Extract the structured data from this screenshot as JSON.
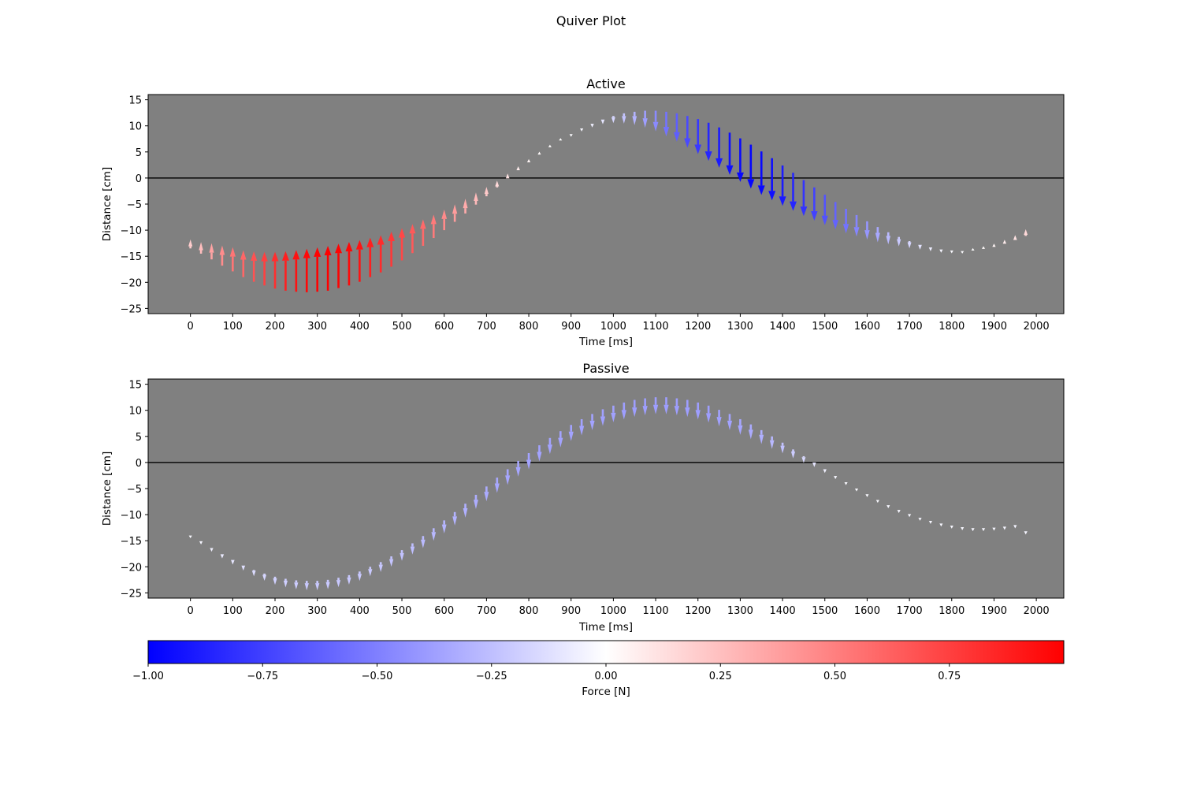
{
  "figure": {
    "title": "Quiver Plot",
    "colorbar": {
      "label": "Force [N]",
      "range": [
        -1.0,
        1.0
      ],
      "colors": {
        "min": "#0000ff",
        "mid": "#ffffff",
        "max": "#ff0000"
      },
      "ticks": [
        -1.0,
        -0.75,
        -0.5,
        -0.25,
        0.0,
        0.25,
        0.5,
        0.75
      ],
      "tick_labels": [
        "−1.00",
        "−0.75",
        "−0.50",
        "−0.25",
        "0.00",
        "0.25",
        "0.50",
        "0.75"
      ]
    }
  },
  "chart_data": [
    {
      "type": "quiver",
      "title": "Active",
      "xlabel": "Time [ms]",
      "ylabel": "Distance [cm]",
      "xlim": [
        -100,
        2065
      ],
      "ylim": [
        -26,
        16
      ],
      "xticks": [
        0,
        100,
        200,
        300,
        400,
        500,
        600,
        700,
        800,
        900,
        1000,
        1100,
        1200,
        1300,
        1400,
        1500,
        1600,
        1700,
        1800,
        1900,
        2000
      ],
      "yticks": [
        -25,
        -20,
        -15,
        -10,
        -5,
        0,
        5,
        10,
        15
      ],
      "ytick_labels": [
        "−25",
        "−20",
        "−15",
        "−10",
        "−5",
        "0",
        "5",
        "10",
        "15"
      ],
      "background": "#808080",
      "zero_line": true,
      "grid": false,
      "arrow_base": "y position, arrow length proportional to force",
      "arrows": {
        "x": [
          0,
          25,
          50,
          75,
          100,
          125,
          150,
          175,
          200,
          225,
          250,
          275,
          300,
          325,
          350,
          375,
          400,
          425,
          450,
          475,
          500,
          525,
          550,
          575,
          600,
          625,
          650,
          675,
          700,
          725,
          750,
          775,
          800,
          825,
          850,
          875,
          900,
          925,
          950,
          975,
          1000,
          1025,
          1050,
          1075,
          1100,
          1125,
          1150,
          1175,
          1200,
          1225,
          1250,
          1275,
          1300,
          1325,
          1350,
          1375,
          1400,
          1425,
          1450,
          1475,
          1500,
          1525,
          1550,
          1575,
          1600,
          1625,
          1650,
          1675,
          1700,
          1725,
          1750,
          1775,
          1800,
          1825,
          1850,
          1875,
          1900,
          1925,
          1950,
          1975
        ],
        "y": [
          -13.5,
          -14.5,
          -15.6,
          -16.8,
          -17.9,
          -19.0,
          -19.9,
          -20.6,
          -21.2,
          -21.6,
          -21.8,
          -21.9,
          -21.8,
          -21.6,
          -21.1,
          -20.6,
          -19.9,
          -19.0,
          -18.1,
          -17.0,
          -15.8,
          -14.4,
          -13.0,
          -11.5,
          -10.0,
          -8.4,
          -6.8,
          -5.1,
          -3.5,
          -1.8,
          -0.1,
          1.5,
          3.0,
          4.5,
          5.9,
          7.2,
          8.4,
          9.5,
          10.4,
          11.2,
          11.9,
          12.4,
          12.7,
          12.9,
          12.9,
          12.7,
          12.4,
          11.9,
          11.3,
          10.6,
          9.7,
          8.7,
          7.6,
          6.4,
          5.1,
          3.8,
          2.4,
          1.0,
          -0.4,
          -1.8,
          -3.2,
          -4.6,
          -5.9,
          -7.1,
          -8.3,
          -9.4,
          -10.4,
          -11.3,
          -12.1,
          -12.8,
          -13.3,
          -13.7,
          -13.9,
          -14.0,
          -13.9,
          -13.6,
          -13.2,
          -12.6,
          -11.9,
          -11.1
        ],
        "force": [
          0.2,
          0.26,
          0.36,
          0.45,
          0.54,
          0.6,
          0.68,
          0.75,
          0.82,
          0.88,
          0.93,
          0.97,
          0.99,
          1.0,
          0.99,
          0.97,
          0.93,
          0.88,
          0.83,
          0.78,
          0.72,
          0.65,
          0.59,
          0.52,
          0.46,
          0.39,
          0.33,
          0.27,
          0.21,
          0.15,
          0.11,
          0.07,
          0.04,
          0.02,
          0.01,
          0.0,
          -0.01,
          -0.03,
          -0.06,
          -0.1,
          -0.16,
          -0.23,
          -0.3,
          -0.38,
          -0.46,
          -0.55,
          -0.63,
          -0.71,
          -0.78,
          -0.85,
          -0.9,
          -0.94,
          -0.97,
          -0.98,
          -0.97,
          -0.94,
          -0.9,
          -0.85,
          -0.8,
          -0.74,
          -0.68,
          -0.61,
          -0.55,
          -0.48,
          -0.41,
          -0.34,
          -0.27,
          -0.21,
          -0.16,
          -0.11,
          -0.07,
          -0.04,
          -0.02,
          -0.01,
          0.0,
          0.02,
          0.04,
          0.07,
          0.11,
          0.15
        ]
      }
    },
    {
      "type": "quiver",
      "title": "Passive",
      "xlabel": "Time [ms]",
      "ylabel": "Distance [cm]",
      "xlim": [
        -100,
        2065
      ],
      "ylim": [
        -26,
        16
      ],
      "xticks": [
        0,
        100,
        200,
        300,
        400,
        500,
        600,
        700,
        800,
        900,
        1000,
        1100,
        1200,
        1300,
        1400,
        1500,
        1600,
        1700,
        1800,
        1900,
        2000
      ],
      "yticks": [
        -25,
        -20,
        -15,
        -10,
        -5,
        0,
        5,
        10,
        15
      ],
      "ytick_labels": [
        "−25",
        "−20",
        "−15",
        "−10",
        "−5",
        "0",
        "5",
        "10",
        "15"
      ],
      "background": "#808080",
      "zero_line": true,
      "grid": false,
      "arrow_base": "y position, arrow length proportional to force",
      "arrows": {
        "x": [
          0,
          25,
          50,
          75,
          100,
          125,
          150,
          175,
          200,
          225,
          250,
          275,
          300,
          325,
          350,
          375,
          400,
          425,
          450,
          475,
          500,
          525,
          550,
          575,
          600,
          625,
          650,
          675,
          700,
          725,
          750,
          775,
          800,
          825,
          850,
          875,
          900,
          925,
          950,
          975,
          1000,
          1025,
          1050,
          1075,
          1100,
          1125,
          1150,
          1175,
          1200,
          1225,
          1250,
          1275,
          1300,
          1325,
          1350,
          1375,
          1400,
          1425,
          1450,
          1475,
          1500,
          1525,
          1550,
          1575,
          1600,
          1625,
          1650,
          1675,
          1700,
          1725,
          1750,
          1775,
          1800,
          1825,
          1850,
          1875,
          1900,
          1925,
          1950,
          1975
        ],
        "y": [
          -14.0,
          -15.1,
          -16.4,
          -17.6,
          -18.7,
          -19.7,
          -20.6,
          -21.3,
          -21.9,
          -22.3,
          -22.6,
          -22.7,
          -22.7,
          -22.5,
          -22.1,
          -21.6,
          -20.9,
          -20.0,
          -19.1,
          -18.0,
          -16.8,
          -15.5,
          -14.1,
          -12.6,
          -11.1,
          -9.5,
          -7.9,
          -6.2,
          -4.6,
          -2.9,
          -1.3,
          0.3,
          1.8,
          3.3,
          4.7,
          6.0,
          7.2,
          8.3,
          9.3,
          10.2,
          10.9,
          11.5,
          12.0,
          12.3,
          12.5,
          12.5,
          12.3,
          12.0,
          11.5,
          10.9,
          10.1,
          9.3,
          8.3,
          7.3,
          6.2,
          5.0,
          3.8,
          2.5,
          1.2,
          0.0,
          -1.3,
          -2.6,
          -3.8,
          -5.0,
          -6.1,
          -7.2,
          -8.2,
          -9.1,
          -9.9,
          -10.6,
          -11.2,
          -11.7,
          -12.1,
          -12.4,
          -12.6,
          -12.6,
          -12.5,
          -12.3,
          -12.0,
          -13.2
        ],
        "force": [
          -0.02,
          -0.04,
          -0.06,
          -0.08,
          -0.1,
          -0.12,
          -0.14,
          -0.16,
          -0.18,
          -0.19,
          -0.2,
          -0.21,
          -0.21,
          -0.21,
          -0.21,
          -0.21,
          -0.21,
          -0.21,
          -0.22,
          -0.23,
          -0.24,
          -0.25,
          -0.27,
          -0.28,
          -0.29,
          -0.3,
          -0.31,
          -0.32,
          -0.33,
          -0.34,
          -0.35,
          -0.35,
          -0.36,
          -0.36,
          -0.36,
          -0.36,
          -0.36,
          -0.36,
          -0.36,
          -0.37,
          -0.37,
          -0.38,
          -0.38,
          -0.38,
          -0.38,
          -0.38,
          -0.38,
          -0.38,
          -0.38,
          -0.38,
          -0.37,
          -0.36,
          -0.35,
          -0.33,
          -0.31,
          -0.28,
          -0.24,
          -0.2,
          -0.15,
          -0.1,
          -0.06,
          -0.03,
          -0.02,
          -0.02,
          -0.02,
          -0.02,
          -0.03,
          -0.03,
          -0.03,
          -0.03,
          -0.03,
          -0.03,
          -0.03,
          -0.03,
          -0.03,
          -0.03,
          -0.03,
          -0.04,
          -0.04,
          -0.04
        ]
      }
    }
  ]
}
